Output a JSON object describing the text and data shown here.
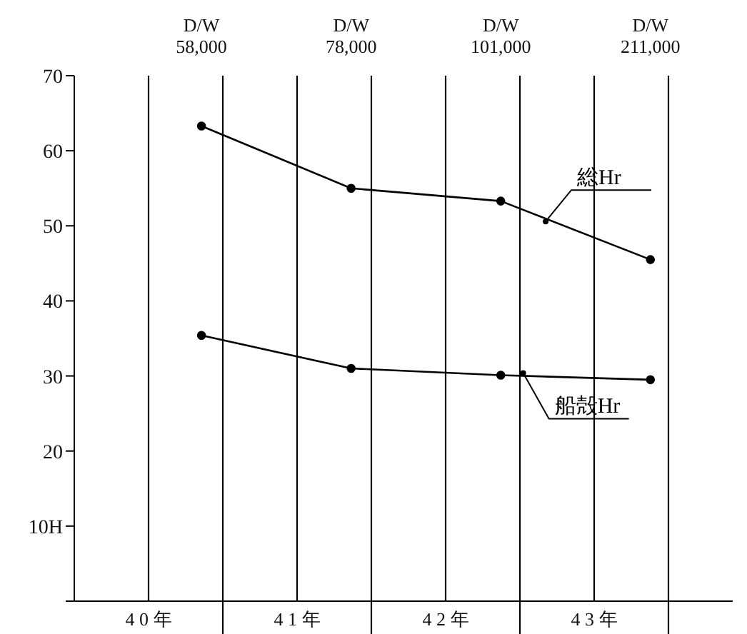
{
  "chart_data": {
    "type": "line",
    "categories": [
      "D/W\n58,000",
      "D/W\n78,000",
      "D/W\n101,000",
      "D/W\n211,000"
    ],
    "series": [
      {
        "name": "総Hr",
        "color": "#000000",
        "values": [
          63.3,
          55.0,
          53.3,
          45.5
        ]
      },
      {
        "name": "船殻Hr",
        "color": "#000000",
        "values": [
          35.4,
          31.0,
          30.1,
          29.5
        ]
      }
    ],
    "annotations": [
      "4 0 年",
      "4 1 年",
      "4 2 年",
      "4 3 年"
    ],
    "ylim": [
      0,
      70
    ],
    "yticks": [
      {
        "value": 0,
        "label": null
      },
      {
        "value": 10,
        "label": "10H"
      },
      20,
      30,
      40,
      50,
      60,
      70
    ],
    "grid": "x",
    "marker": "circle",
    "line_style": "solid",
    "legend": false
  }
}
